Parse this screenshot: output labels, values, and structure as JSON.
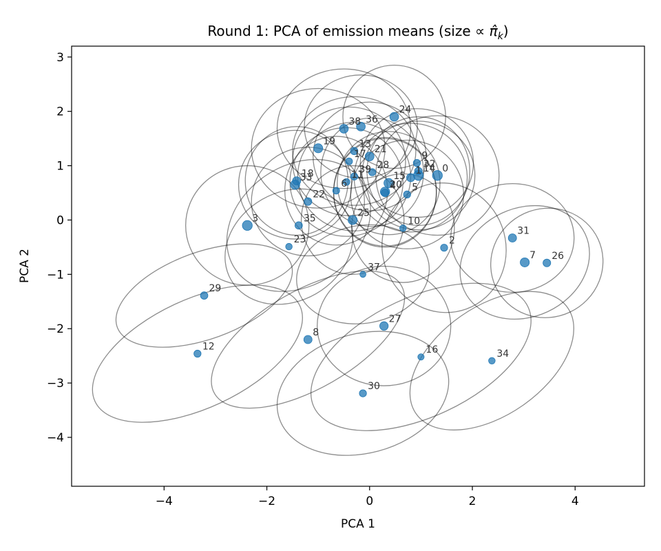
{
  "chart_data": {
    "type": "scatter",
    "title": "Round 1: PCA of emission means (size ∝ π̂k)",
    "title_main": "Round 1: PCA of emission means (size ∝ ",
    "title_pi": "π̂",
    "title_sub": "k",
    "title_close": ")",
    "xlabel": "PCA 1",
    "ylabel": "PCA 2",
    "xlim": [
      -5.8,
      5.35
    ],
    "ylim": [
      -4.9,
      3.2
    ],
    "xticks": [
      -4,
      -2,
      0,
      2,
      4
    ],
    "yticks": [
      3,
      2,
      1,
      0,
      -1,
      -2,
      -3,
      -4
    ],
    "xtick_labels": [
      "−4",
      "−2",
      "0",
      "2",
      "4"
    ],
    "ytick_labels": [
      "3",
      "2",
      "1",
      "0",
      "−1",
      "−2",
      "−3",
      "−4"
    ],
    "grid": false,
    "colors": {
      "points": "#1f77b4",
      "ellipses": "#888888",
      "labels": "#333333"
    },
    "points": [
      {
        "label": "0",
        "x": 1.32,
        "y": 0.82,
        "weight": 1.0
      },
      {
        "label": "1",
        "x": 0.8,
        "y": 0.78,
        "weight": 0.7
      },
      {
        "label": "2",
        "x": 1.45,
        "y": -0.51,
        "weight": 0.5
      },
      {
        "label": "3",
        "x": -2.38,
        "y": -0.1,
        "weight": 1.0
      },
      {
        "label": "4",
        "x": 0.3,
        "y": 0.5,
        "weight": 0.6
      },
      {
        "label": "5",
        "x": 0.73,
        "y": 0.47,
        "weight": 0.5
      },
      {
        "label": "6",
        "x": -0.65,
        "y": 0.54,
        "weight": 0.45
      },
      {
        "label": "7",
        "x": 3.02,
        "y": -0.78,
        "weight": 0.85
      },
      {
        "label": "8",
        "x": -1.2,
        "y": -2.2,
        "weight": 0.7
      },
      {
        "label": "9",
        "x": 0.92,
        "y": 1.05,
        "weight": 0.5
      },
      {
        "label": "10",
        "x": 0.65,
        "y": -0.15,
        "weight": 0.4
      },
      {
        "label": "11",
        "x": -0.45,
        "y": 0.7,
        "weight": 0.45
      },
      {
        "label": "12",
        "x": -3.35,
        "y": -2.46,
        "weight": 0.5
      },
      {
        "label": "13",
        "x": -0.3,
        "y": 1.27,
        "weight": 0.55
      },
      {
        "label": "14",
        "x": 0.95,
        "y": 0.82,
        "weight": 1.0
      },
      {
        "label": "15",
        "x": 0.37,
        "y": 0.68,
        "weight": 0.9
      },
      {
        "label": "16",
        "x": 1.0,
        "y": -2.52,
        "weight": 0.35
      },
      {
        "label": "17",
        "x": -0.4,
        "y": 1.08,
        "weight": 0.45
      },
      {
        "label": "18",
        "x": -1.42,
        "y": 0.72,
        "weight": 0.7
      },
      {
        "label": "19",
        "x": -1.0,
        "y": 1.32,
        "weight": 0.85
      },
      {
        "label": "20",
        "x": 0.3,
        "y": 0.52,
        "weight": 0.9
      },
      {
        "label": "21",
        "x": 0.0,
        "y": 1.17,
        "weight": 0.8
      },
      {
        "label": "22",
        "x": -1.2,
        "y": 0.34,
        "weight": 0.6
      },
      {
        "label": "23",
        "x": -1.57,
        "y": -0.49,
        "weight": 0.4
      },
      {
        "label": "24",
        "x": 0.48,
        "y": 1.9,
        "weight": 0.8
      },
      {
        "label": "25",
        "x": -0.33,
        "y": 0.0,
        "weight": 0.85
      },
      {
        "label": "26",
        "x": 3.45,
        "y": -0.79,
        "weight": 0.6
      },
      {
        "label": "27",
        "x": 0.28,
        "y": -1.95,
        "weight": 0.75
      },
      {
        "label": "28",
        "x": 0.05,
        "y": 0.88,
        "weight": 0.5
      },
      {
        "label": "29",
        "x": -3.22,
        "y": -1.39,
        "weight": 0.55
      },
      {
        "label": "30",
        "x": -0.13,
        "y": -3.19,
        "weight": 0.5
      },
      {
        "label": "31",
        "x": 2.78,
        "y": -0.33,
        "weight": 0.7
      },
      {
        "label": "32",
        "x": 0.95,
        "y": 0.9,
        "weight": 0.6
      },
      {
        "label": "33",
        "x": -1.45,
        "y": 0.65,
        "weight": 0.9
      },
      {
        "label": "34",
        "x": 2.38,
        "y": -2.59,
        "weight": 0.4
      },
      {
        "label": "35",
        "x": -1.38,
        "y": -0.1,
        "weight": 0.55
      },
      {
        "label": "36",
        "x": -0.17,
        "y": 1.72,
        "weight": 0.8
      },
      {
        "label": "37",
        "x": -0.13,
        "y": -1.0,
        "weight": 0.3
      },
      {
        "label": "38",
        "x": -0.5,
        "y": 1.68,
        "weight": 0.8
      },
      {
        "label": "39",
        "x": -0.3,
        "y": 0.8,
        "weight": 0.5
      }
    ],
    "ellipses": [
      {
        "cx": 1.32,
        "cy": 0.82,
        "rx": 1.2,
        "ry": 1.1,
        "angle": 0
      },
      {
        "cx": 0.8,
        "cy": 0.78,
        "rx": 1.1,
        "ry": 1.0,
        "angle": 0
      },
      {
        "cx": 1.45,
        "cy": -0.51,
        "rx": 1.2,
        "ry": 1.2,
        "angle": 20
      },
      {
        "cx": -2.38,
        "cy": -0.1,
        "rx": 1.2,
        "ry": 1.1,
        "angle": 0
      },
      {
        "cx": 0.3,
        "cy": 0.5,
        "rx": 1.0,
        "ry": 1.0,
        "angle": 0
      },
      {
        "cx": 0.73,
        "cy": 0.47,
        "rx": 1.1,
        "ry": 1.0,
        "angle": 0
      },
      {
        "cx": -0.65,
        "cy": 0.54,
        "rx": 1.0,
        "ry": 1.0,
        "angle": 0
      },
      {
        "cx": 3.02,
        "cy": -0.78,
        "rx": 1.3,
        "ry": 1.0,
        "angle": 25
      },
      {
        "cx": -1.2,
        "cy": -2.2,
        "rx": 2.1,
        "ry": 0.9,
        "angle": 30
      },
      {
        "cx": 0.92,
        "cy": 1.05,
        "rx": 1.1,
        "ry": 1.0,
        "angle": 0
      },
      {
        "cx": 0.65,
        "cy": -0.15,
        "rx": 1.0,
        "ry": 1.0,
        "angle": 0
      },
      {
        "cx": -0.45,
        "cy": 0.7,
        "rx": 1.1,
        "ry": 1.0,
        "angle": 0
      },
      {
        "cx": -3.35,
        "cy": -2.46,
        "rx": 2.2,
        "ry": 1.0,
        "angle": 25
      },
      {
        "cx": -0.3,
        "cy": 1.27,
        "rx": 1.2,
        "ry": 1.0,
        "angle": 0
      },
      {
        "cx": 0.95,
        "cy": 0.82,
        "rx": 1.1,
        "ry": 1.0,
        "angle": 0
      },
      {
        "cx": 0.37,
        "cy": 0.68,
        "rx": 1.0,
        "ry": 0.95,
        "angle": 0
      },
      {
        "cx": 1.0,
        "cy": -2.52,
        "rx": 2.3,
        "ry": 1.1,
        "angle": 25
      },
      {
        "cx": -0.4,
        "cy": 1.08,
        "rx": 1.1,
        "ry": 1.0,
        "angle": 0
      },
      {
        "cx": -1.42,
        "cy": 0.72,
        "rx": 1.0,
        "ry": 1.0,
        "angle": 0
      },
      {
        "cx": -1.0,
        "cy": 1.32,
        "rx": 1.3,
        "ry": 1.1,
        "angle": 0
      },
      {
        "cx": 0.3,
        "cy": 0.52,
        "rx": 1.0,
        "ry": 1.0,
        "angle": 0
      },
      {
        "cx": 0.0,
        "cy": 1.17,
        "rx": 1.1,
        "ry": 1.0,
        "angle": 0
      },
      {
        "cx": -1.2,
        "cy": 0.34,
        "rx": 1.1,
        "ry": 1.0,
        "angle": 0
      },
      {
        "cx": -1.57,
        "cy": -0.49,
        "rx": 1.3,
        "ry": 1.0,
        "angle": 30
      },
      {
        "cx": 0.48,
        "cy": 1.9,
        "rx": 1.0,
        "ry": 0.95,
        "angle": 0
      },
      {
        "cx": -0.33,
        "cy": 0.0,
        "rx": 1.0,
        "ry": 1.0,
        "angle": 0
      },
      {
        "cx": 3.45,
        "cy": -0.79,
        "rx": 1.1,
        "ry": 1.0,
        "angle": 25
      },
      {
        "cx": 0.28,
        "cy": -1.95,
        "rx": 1.3,
        "ry": 1.1,
        "angle": 0
      },
      {
        "cx": 0.05,
        "cy": 0.88,
        "rx": 1.0,
        "ry": 1.0,
        "angle": 0
      },
      {
        "cx": -3.22,
        "cy": -1.39,
        "rx": 1.8,
        "ry": 0.8,
        "angle": 20
      },
      {
        "cx": -0.13,
        "cy": -3.19,
        "rx": 1.7,
        "ry": 1.1,
        "angle": 15
      },
      {
        "cx": 2.78,
        "cy": -0.33,
        "rx": 1.2,
        "ry": 1.0,
        "angle": 0
      },
      {
        "cx": 0.95,
        "cy": 0.9,
        "rx": 1.0,
        "ry": 1.0,
        "angle": 0
      },
      {
        "cx": -1.45,
        "cy": 0.65,
        "rx": 1.1,
        "ry": 1.0,
        "angle": 0
      },
      {
        "cx": 2.38,
        "cy": -2.59,
        "rx": 1.8,
        "ry": 1.0,
        "angle": 35
      },
      {
        "cx": -1.38,
        "cy": -0.1,
        "rx": 1.5,
        "ry": 1.1,
        "angle": 35
      },
      {
        "cx": -0.17,
        "cy": 1.72,
        "rx": 1.1,
        "ry": 0.95,
        "angle": 0
      },
      {
        "cx": -0.13,
        "cy": -1.0,
        "rx": 1.3,
        "ry": 0.9,
        "angle": 10
      },
      {
        "cx": -0.5,
        "cy": 1.68,
        "rx": 1.3,
        "ry": 1.1,
        "angle": 0
      },
      {
        "cx": -0.3,
        "cy": 0.8,
        "rx": 1.1,
        "ry": 1.0,
        "angle": 0
      }
    ]
  }
}
